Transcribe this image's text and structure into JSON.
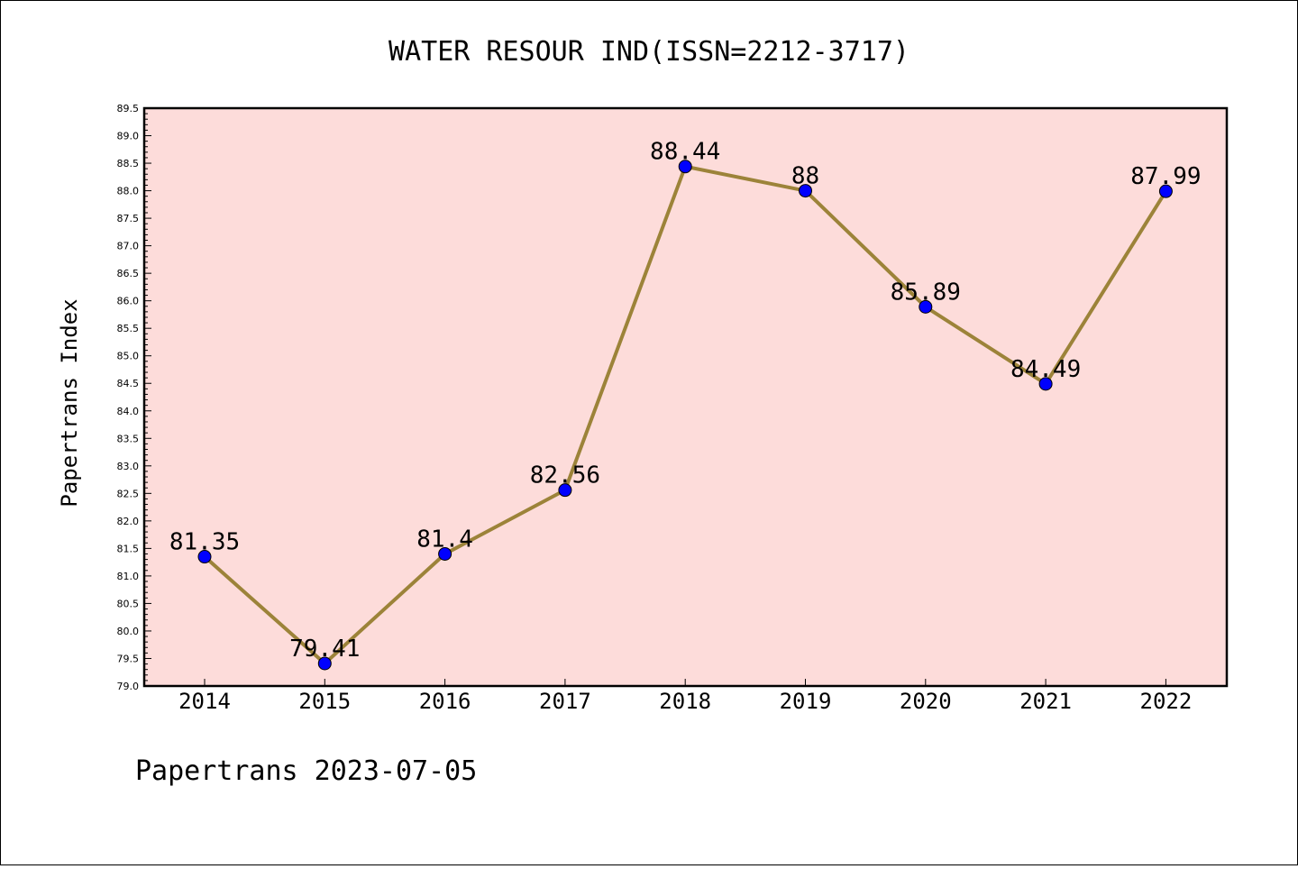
{
  "title": "WATER RESOUR IND(ISSN=2212-3717)",
  "footer": "Papertrans 2023-07-05",
  "chart_data": {
    "type": "line",
    "title": "WATER RESOUR IND(ISSN=2212-3717)",
    "xlabel": "",
    "ylabel": "Papertrans Index",
    "categories": [
      "2014",
      "2015",
      "2016",
      "2017",
      "2018",
      "2019",
      "2020",
      "2021",
      "2022"
    ],
    "values": [
      81.35,
      79.41,
      81.4,
      82.56,
      88.44,
      88,
      85.89,
      84.49,
      87.99
    ],
    "data_labels": [
      "81.35",
      "79.41",
      "81.4",
      "82.56",
      "88.44",
      "88",
      "85.89",
      "84.49",
      "87.99"
    ],
    "ylim": [
      79.0,
      89.5
    ],
    "yticks": [
      "79.0",
      "79.5",
      "80.0",
      "80.5",
      "81.0",
      "81.5",
      "82.0",
      "82.5",
      "83.0",
      "83.5",
      "84.0",
      "84.5",
      "85.0",
      "85.5",
      "86.0",
      "86.5",
      "87.0",
      "87.5",
      "88.0",
      "88.5",
      "89.0",
      "89.5"
    ],
    "grid": false,
    "colors": {
      "plot_background": "#fddcda",
      "line": "#9c8339",
      "marker": "#0000ff"
    }
  }
}
